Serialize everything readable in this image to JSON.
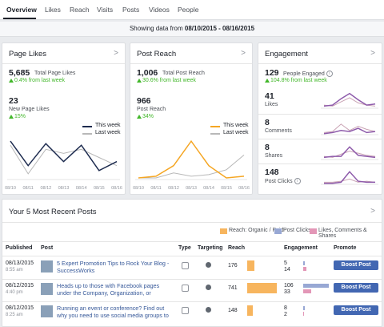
{
  "tabs": [
    "Overview",
    "Likes",
    "Reach",
    "Visits",
    "Posts",
    "Videos",
    "People"
  ],
  "date_bar": {
    "prefix": "Showing data from",
    "range": "08/10/2015 - 08/16/2015"
  },
  "cards": [
    {
      "title": "Page Likes",
      "stats": [
        {
          "value": "5,685",
          "label": "Total Page Likes",
          "change": "0.4% from last week"
        },
        {
          "value": "23",
          "label": "New Page Likes",
          "change": "15%"
        }
      ],
      "chart": {
        "type": "line",
        "categories": [
          "08/10",
          "08/11",
          "08/12",
          "08/13",
          "08/14",
          "08/15",
          "08/16"
        ],
        "series": [
          {
            "name": "This week",
            "color": "#1d2b4f",
            "values": [
              47,
              17,
              44,
              22,
              42,
              11,
              22
            ]
          },
          {
            "name": "Last week",
            "color": "#b8b8b8",
            "values": [
              42,
              7,
              37,
              32,
              37,
              27,
              17
            ]
          }
        ],
        "ylim": [
          0,
          52
        ]
      }
    },
    {
      "title": "Post Reach",
      "stats": [
        {
          "value": "1,006",
          "label": "Total Post Reach",
          "change": "30.6% from last week"
        },
        {
          "value": "966",
          "label": "Post Reach",
          "change": "34%"
        }
      ],
      "chart": {
        "type": "line",
        "categories": [
          "08/10",
          "08/11",
          "08/12",
          "08/13",
          "08/14",
          "08/15",
          "08/16"
        ],
        "series": [
          {
            "name": "This week",
            "color": "#f5a623",
            "values": [
              2,
              4,
              17,
              47,
              17,
              2,
              4
            ]
          },
          {
            "name": "Last week",
            "color": "#b8b8b8",
            "values": [
              2,
              2,
              8,
              4,
              6,
              12,
              30
            ]
          }
        ],
        "ylim": [
          0,
          52
        ]
      }
    }
  ],
  "engagement": {
    "title": "Engagement",
    "headline": {
      "value": "129",
      "label": "People Engaged",
      "change": "104.8% from last week"
    },
    "rows": [
      {
        "value": "41",
        "label": "Likes",
        "chart": {
          "type": "line",
          "ylim": [
            0,
            16
          ],
          "series": [
            {
              "color": "#8e5bab",
              "values": [
                2,
                3,
                9,
                14,
                8,
                3,
                4
              ]
            },
            {
              "color": "#c9a3b4",
              "values": [
                3,
                2,
                6,
                10,
                5,
                3,
                2
              ]
            }
          ]
        }
      },
      {
        "value": "8",
        "label": "Comments",
        "chart": {
          "type": "line",
          "ylim": [
            0,
            16
          ],
          "series": [
            {
              "color": "#8e5bab",
              "values": [
                1,
                2,
                4,
                3,
                6,
                2,
                3
              ]
            },
            {
              "color": "#c9a3b4",
              "values": [
                2,
                3,
                10,
                4,
                8,
                5,
                3
              ]
            }
          ]
        }
      },
      {
        "value": "8",
        "label": "Shares",
        "chart": {
          "type": "line",
          "ylim": [
            0,
            16
          ],
          "series": [
            {
              "color": "#8e5bab",
              "values": [
                2,
                3,
                3,
                12,
                4,
                3,
                2
              ]
            },
            {
              "color": "#c9a3b4",
              "values": [
                3,
                2,
                5,
                8,
                6,
                4,
                3
              ]
            }
          ]
        }
      },
      {
        "value": "148",
        "label": "Post Clicks",
        "chart": {
          "type": "line",
          "ylim": [
            0,
            16
          ],
          "series": [
            {
              "color": "#8e5bab",
              "values": [
                1,
                1,
                2,
                12,
                3,
                2,
                2
              ]
            },
            {
              "color": "#c9a3b4",
              "values": [
                2,
                2,
                3,
                5,
                2,
                3,
                2
              ]
            }
          ]
        }
      }
    ]
  },
  "recent_posts": {
    "title": "Your 5 Most Recent Posts",
    "legend": [
      {
        "label": "Reach: Organic / Paid",
        "color": "#f7b55e"
      },
      {
        "label": "Post Clicks",
        "color": "#98a8d4"
      },
      {
        "label": "Likes, Comments & Shares",
        "color": "#e397b7"
      }
    ],
    "columns": [
      "Published",
      "Post",
      "Type",
      "Targeting",
      "Reach",
      "Engagement",
      "Promote"
    ],
    "rows": [
      {
        "date": "08/13/2015",
        "time": "8:55 am",
        "text": "5 Expert Promotion Tips to Rock Your Blog - SuccessWorks",
        "reach": 176,
        "clicks": 5,
        "reactions": 14,
        "action": "Boost Post"
      },
      {
        "date": "08/12/2015",
        "time": "4:40 pm",
        "text": "Heads up to those with Facebook pages under the Company, Organization, or Institution category. It",
        "reach": 741,
        "clicks": 106,
        "reactions": 33,
        "action": "Boost Post"
      },
      {
        "date": "08/12/2015",
        "time": "8:25 am",
        "text": "Running an event or conference? Find out why you need to use social media groups to connect your",
        "reach": 148,
        "clicks": 8,
        "reactions": 2,
        "action": "Boost Post"
      }
    ]
  }
}
